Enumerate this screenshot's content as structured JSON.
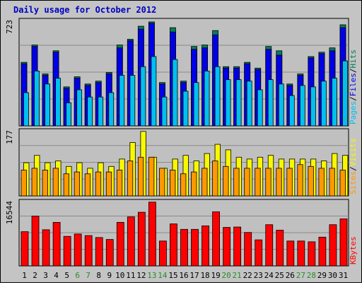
{
  "title": "Daily usage for October 2012",
  "colors": {
    "hits": "#00805c",
    "files": "#0000e6",
    "pages": "#00c0f0",
    "visits": "#f8f800",
    "sites": "#ff9900",
    "kbytes": "#ff0000",
    "weekend_day": "#2a8c2a",
    "weekday": "#000000"
  },
  "chart_data": [
    {
      "type": "bar",
      "ymax_label": "723",
      "legend": [
        "Pages",
        "/",
        "Files",
        "/",
        "Hits"
      ],
      "x": [
        "1",
        "2",
        "3",
        "4",
        "5",
        "6",
        "7",
        "8",
        "9",
        "10",
        "11",
        "12",
        "13",
        "14",
        "15",
        "16",
        "17",
        "18",
        "19",
        "20",
        "21",
        "22",
        "23",
        "24",
        "25",
        "26",
        "27",
        "28",
        "29",
        "30",
        "31"
      ],
      "weekend_days": [
        "6",
        "7",
        "13",
        "14",
        "20",
        "21",
        "27",
        "28"
      ],
      "series": [
        {
          "name": "Hits",
          "values": [
            440,
            560,
            360,
            520,
            270,
            340,
            290,
            310,
            370,
            560,
            600,
            690,
            720,
            300,
            680,
            310,
            550,
            560,
            660,
            410,
            410,
            440,
            400,
            550,
            520,
            290,
            360,
            480,
            510,
            540,
            700
          ]
        },
        {
          "name": "Files",
          "values": [
            430,
            550,
            350,
            510,
            260,
            330,
            280,
            300,
            360,
            540,
            590,
            670,
            710,
            290,
            650,
            300,
            530,
            540,
            630,
            400,
            400,
            430,
            390,
            530,
            490,
            280,
            350,
            470,
            500,
            520,
            680
          ]
        },
        {
          "name": "Pages",
          "values": [
            230,
            380,
            290,
            330,
            160,
            250,
            200,
            200,
            230,
            350,
            350,
            410,
            480,
            200,
            460,
            240,
            300,
            380,
            410,
            320,
            320,
            310,
            250,
            320,
            290,
            210,
            280,
            270,
            310,
            330,
            450
          ]
        }
      ]
    },
    {
      "type": "bar",
      "ymax_label": "177",
      "legend": [
        "Sites",
        "/",
        "Visits"
      ],
      "x": [
        "1",
        "2",
        "3",
        "4",
        "5",
        "6",
        "7",
        "8",
        "9",
        "10",
        "11",
        "12",
        "13",
        "14",
        "15",
        "16",
        "17",
        "18",
        "19",
        "20",
        "21",
        "22",
        "23",
        "24",
        "25",
        "26",
        "27",
        "28",
        "29",
        "30",
        "31"
      ],
      "series": [
        {
          "name": "Visits",
          "values": [
            90,
            110,
            90,
            95,
            80,
            90,
            75,
            90,
            80,
            100,
            145,
            175,
            105,
            75,
            100,
            110,
            95,
            115,
            140,
            125,
            105,
            100,
            105,
            110,
            100,
            100,
            100,
            100,
            95,
            115,
            110
          ]
        },
        {
          "name": "Sites",
          "values": [
            70,
            75,
            70,
            75,
            60,
            65,
            60,
            65,
            65,
            70,
            95,
            105,
            105,
            75,
            70,
            60,
            65,
            75,
            95,
            80,
            75,
            75,
            75,
            75,
            75,
            75,
            85,
            80,
            75,
            75,
            70
          ]
        }
      ]
    },
    {
      "type": "bar",
      "ymax_label": "16544",
      "legend": [
        "KBytes"
      ],
      "x": [
        "1",
        "2",
        "3",
        "4",
        "5",
        "6",
        "7",
        "8",
        "9",
        "10",
        "11",
        "12",
        "13",
        "14",
        "15",
        "16",
        "17",
        "18",
        "19",
        "20",
        "21",
        "22",
        "23",
        "24",
        "25",
        "26",
        "27",
        "28",
        "29",
        "30",
        "31"
      ],
      "series": [
        {
          "name": "KBytes",
          "values": [
            8800,
            12800,
            9300,
            11200,
            7600,
            8200,
            7800,
            7300,
            6800,
            11200,
            12600,
            13800,
            16400,
            6400,
            10800,
            9400,
            9400,
            10300,
            13900,
            9900,
            10000,
            8600,
            6700,
            10600,
            9200,
            6400,
            6400,
            6200,
            7400,
            10600,
            12100
          ]
        }
      ]
    }
  ]
}
